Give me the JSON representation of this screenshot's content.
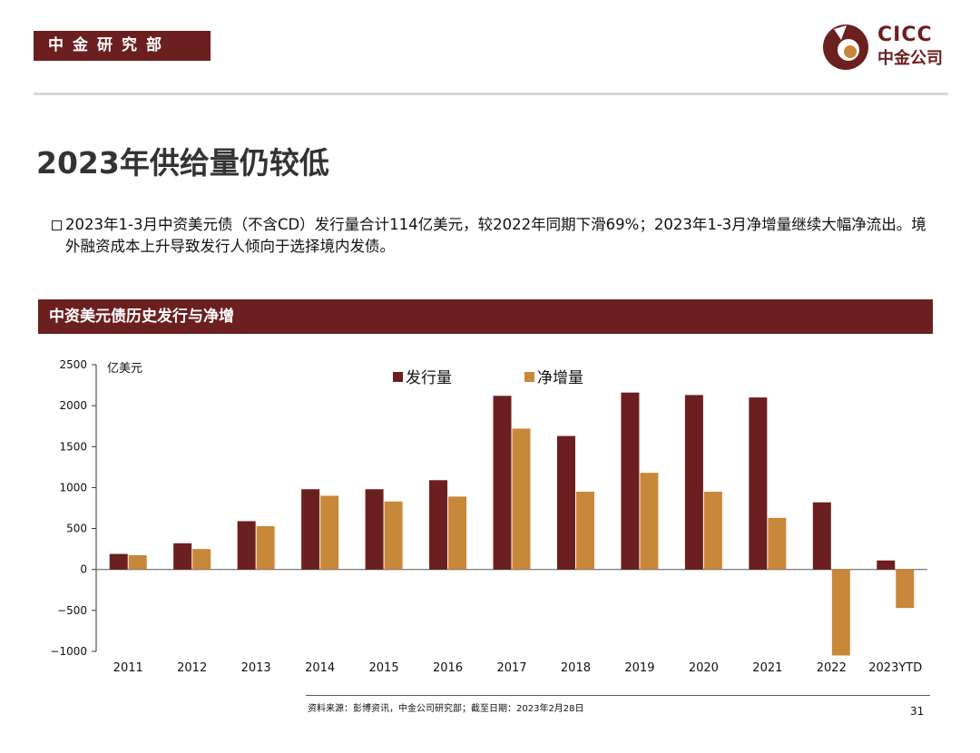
{
  "header": {
    "department": "中金研究部",
    "logo_en": "CICC",
    "logo_cn": "中金公司"
  },
  "page": {
    "title": "2023年供给量仍较低",
    "bullet": "2023年1-3月中资美元债（不含CD）发行量合计114亿美元，较2022年同期下滑69%；2023年1-3月净增量继续大幅净流出。境外融资成本上升导致发行人倾向于选择境内发债。",
    "chart_header": "中资美元债历史发行与净增",
    "source": "资料来源：彭博资讯，中金公司研究部；截至日期：2023年2月28日",
    "page_number": "31"
  },
  "colors": {
    "brand": "#6b1f1f",
    "issuance": "#6b1f1f",
    "net_increase": "#c8883a"
  },
  "chart_data": {
    "type": "bar",
    "ylabel": "亿美元",
    "ylim": [
      -1000,
      2500
    ],
    "yticks": [
      2500,
      2000,
      1500,
      1000,
      500,
      0,
      -500,
      -1000
    ],
    "ytick_labels": [
      "2500",
      "2000",
      "1500",
      "1000",
      "500",
      "0",
      "−500",
      "−1000"
    ],
    "categories": [
      "2011",
      "2012",
      "2013",
      "2014",
      "2015",
      "2016",
      "2017",
      "2018",
      "2019",
      "2020",
      "2021",
      "2022",
      "2023YTD"
    ],
    "legend_position": "top-center",
    "grid": false,
    "series": [
      {
        "name": "发行量",
        "color": "#6b1f1f",
        "values": [
          190,
          320,
          590,
          980,
          980,
          1090,
          2120,
          1630,
          2160,
          2130,
          2100,
          820,
          110
        ]
      },
      {
        "name": "净增量",
        "color": "#c8883a",
        "values": [
          175,
          250,
          530,
          900,
          830,
          890,
          1720,
          950,
          1180,
          950,
          630,
          -1050,
          -470
        ]
      }
    ]
  }
}
